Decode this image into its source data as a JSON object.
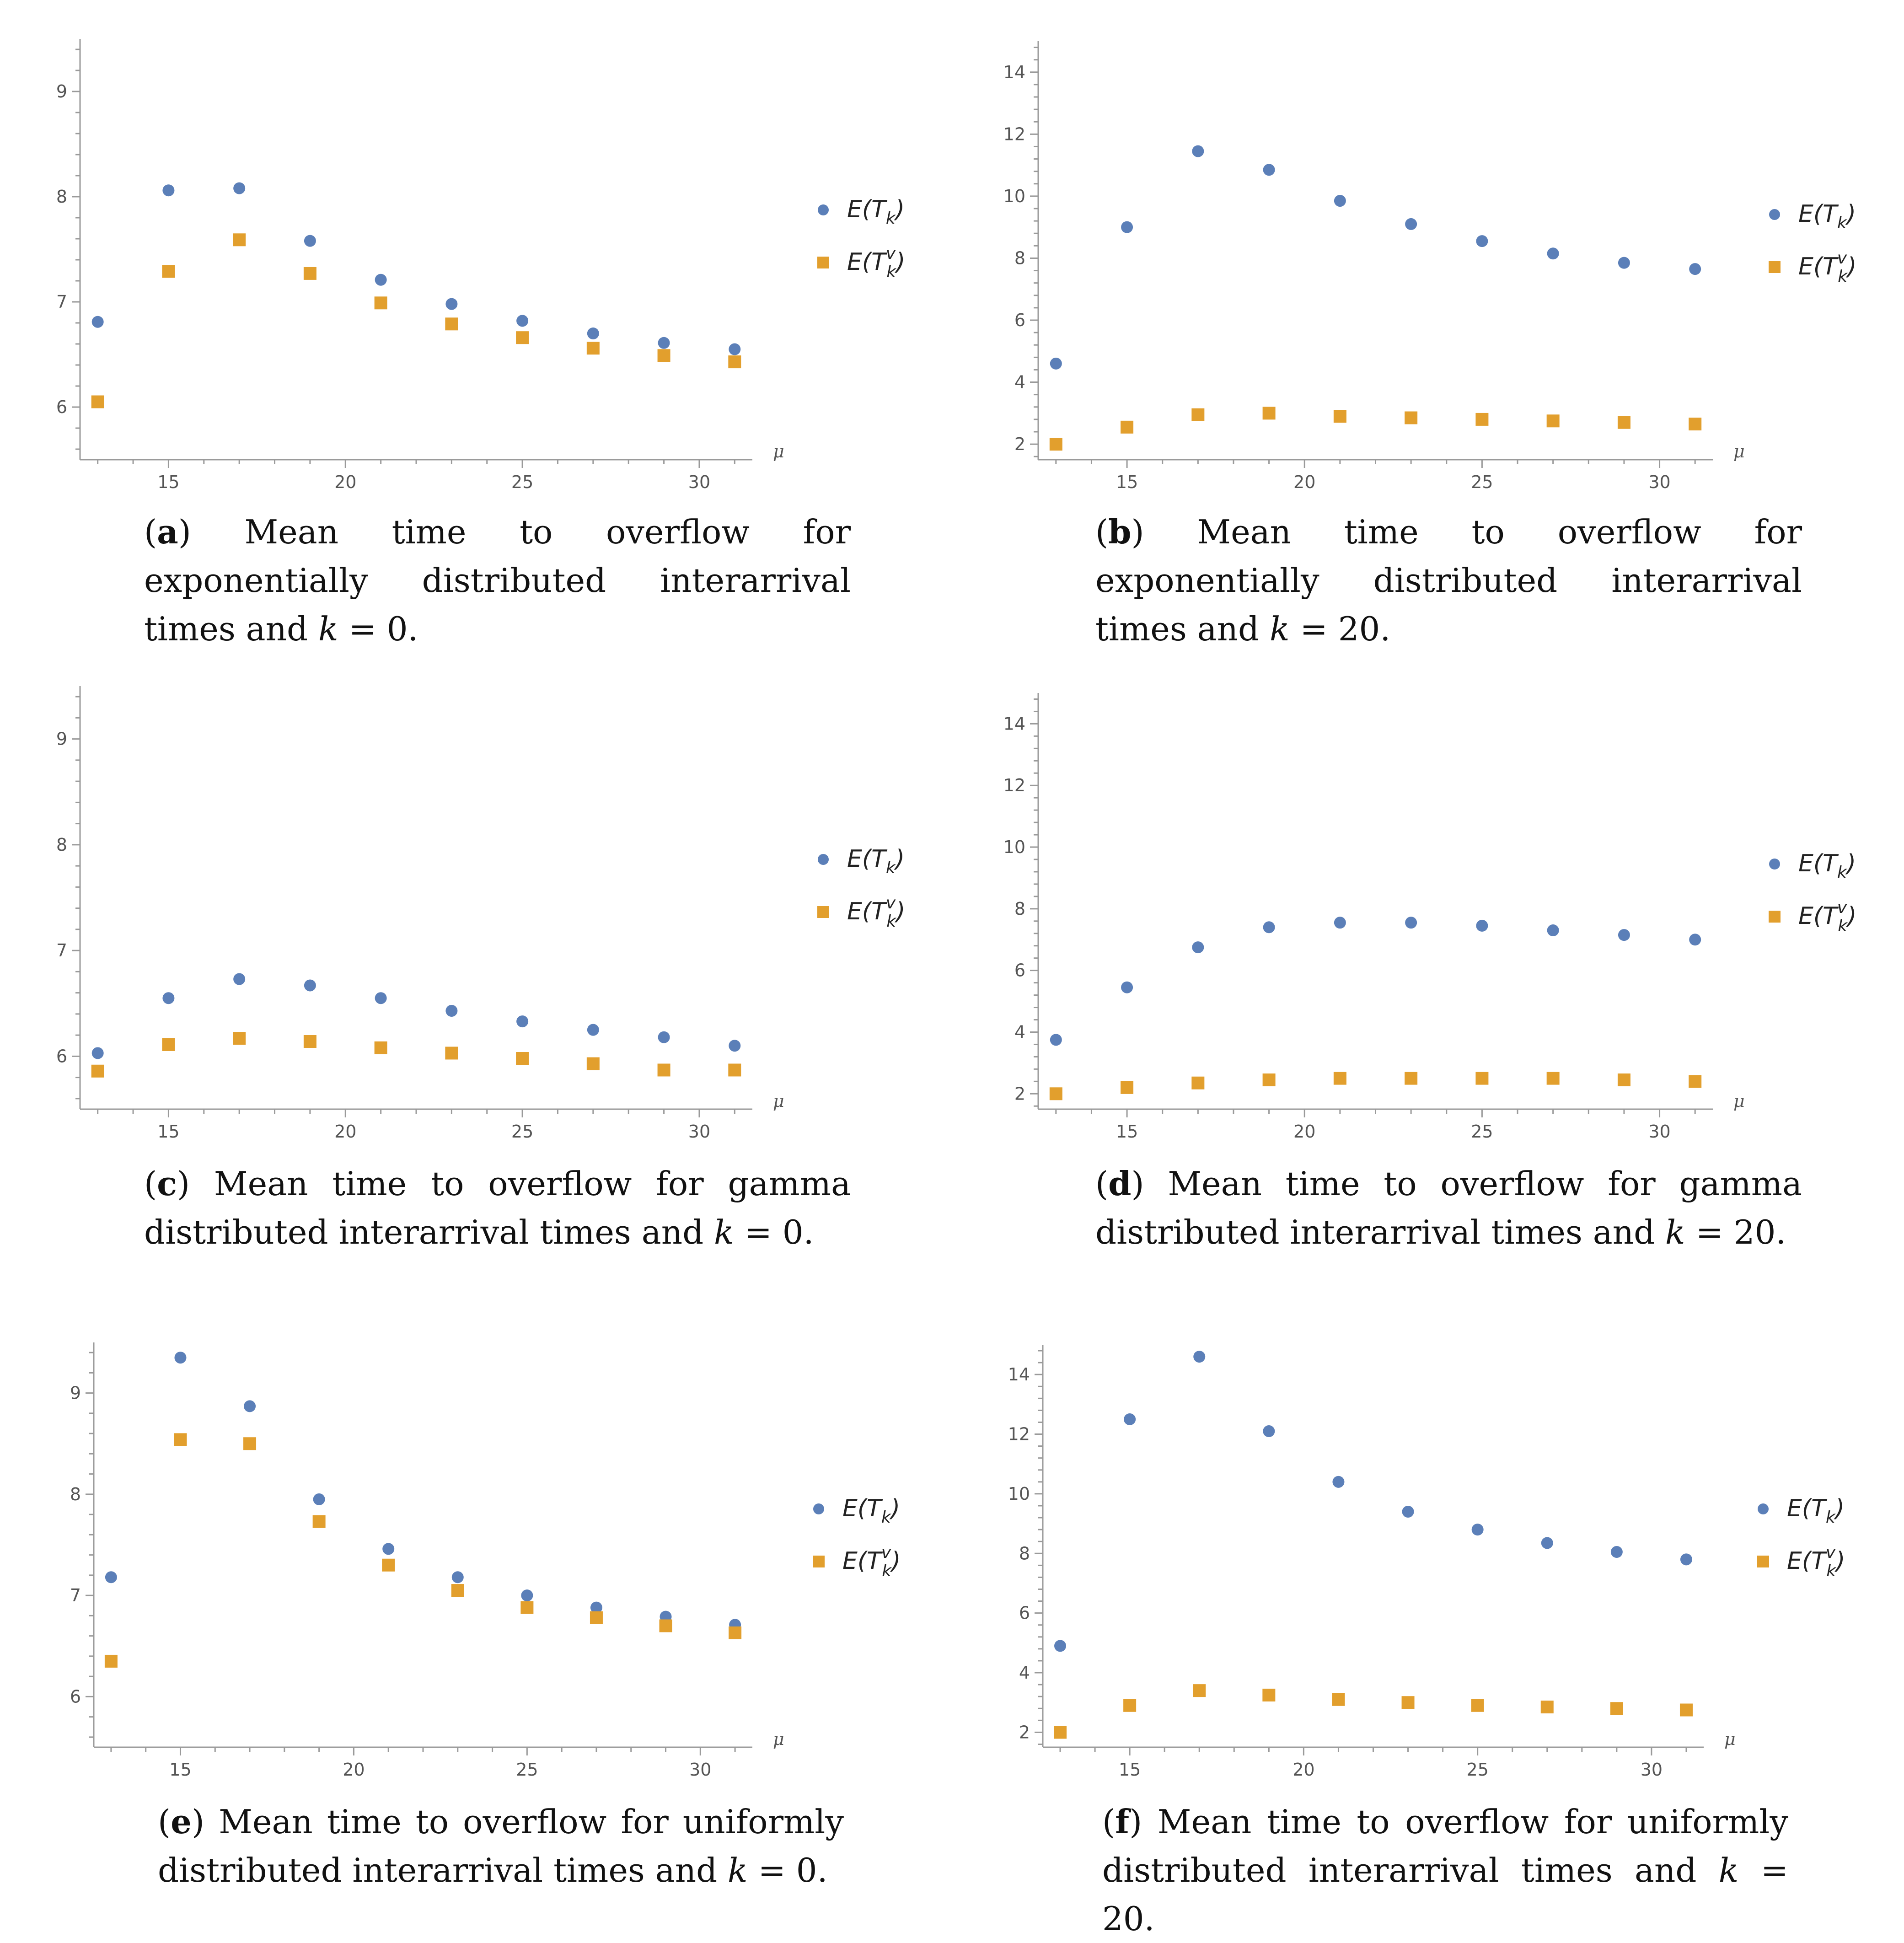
{
  "legend": {
    "series_a_prefix": "E(T",
    "series_a_sub": "k",
    "series_a_suffix": ")",
    "series_b_prefix": "E(T",
    "series_b_sub": "k",
    "series_b_sup": "v",
    "series_b_suffix": ")"
  },
  "colors": {
    "blue": "#5b7fb8",
    "orange": "#e29f2d",
    "axis": "#9a9a9a"
  },
  "panels": [
    {
      "id": "a",
      "letter": "a",
      "caption_text": "Mean time to overflow for exponentially distributed interarrival times and",
      "caption_var": "k",
      "caption_eq": "= 0."
    },
    {
      "id": "b",
      "letter": "b",
      "caption_text": "Mean time to overflow for exponentially distributed interarrival times and",
      "caption_var": "k",
      "caption_eq": "= 20."
    },
    {
      "id": "c",
      "letter": "c",
      "caption_text": "Mean time to overflow for gamma distributed interarrival times and",
      "caption_var": "k",
      "caption_eq": "= 0."
    },
    {
      "id": "d",
      "letter": "d",
      "caption_text": "Mean time to overflow for gamma distributed interarrival times and",
      "caption_var": "k",
      "caption_eq": "= 20."
    },
    {
      "id": "e",
      "letter": "e",
      "caption_text": "Mean time to overflow for uniformly distributed interarrival times and",
      "caption_var": "k",
      "caption_eq": "= 0."
    },
    {
      "id": "f",
      "letter": "f",
      "caption_text": "Mean time to overflow for uniformly distributed interarrival times and",
      "caption_var": "k",
      "caption_eq": "= 20."
    }
  ],
  "chart_data": [
    {
      "type": "scatter",
      "panel": "a",
      "xlabel": "μ",
      "xlim": [
        12.5,
        31.5
      ],
      "ylim": [
        5.5,
        9.5
      ],
      "xticks": [
        15,
        20,
        25,
        30
      ],
      "yticks": [
        6,
        7,
        8,
        9
      ],
      "x": [
        13,
        15,
        17,
        19,
        21,
        23,
        25,
        27,
        29,
        31
      ],
      "series": [
        {
          "name": "E(T_k)",
          "marker": "circle",
          "values": [
            6.81,
            8.06,
            8.08,
            7.58,
            7.21,
            6.98,
            6.82,
            6.7,
            6.61,
            6.55
          ]
        },
        {
          "name": "E(T_k^v)",
          "marker": "square",
          "values": [
            6.05,
            7.29,
            7.59,
            7.27,
            6.99,
            6.79,
            6.66,
            6.56,
            6.49,
            6.43
          ]
        }
      ]
    },
    {
      "type": "scatter",
      "panel": "b",
      "xlabel": "μ",
      "xlim": [
        12.5,
        31.5
      ],
      "ylim": [
        1.5,
        15
      ],
      "xticks": [
        15,
        20,
        25,
        30
      ],
      "yticks": [
        2,
        4,
        6,
        8,
        10,
        12,
        14
      ],
      "x": [
        13,
        15,
        17,
        19,
        21,
        23,
        25,
        27,
        29,
        31
      ],
      "series": [
        {
          "name": "E(T_k)",
          "marker": "circle",
          "values": [
            4.6,
            9.0,
            11.45,
            10.85,
            9.85,
            9.1,
            8.55,
            8.15,
            7.85,
            7.65
          ]
        },
        {
          "name": "E(T_k^v)",
          "marker": "square",
          "values": [
            2.0,
            2.55,
            2.95,
            3.0,
            2.9,
            2.85,
            2.8,
            2.75,
            2.7,
            2.65
          ]
        }
      ]
    },
    {
      "type": "scatter",
      "panel": "c",
      "xlabel": "μ",
      "xlim": [
        12.5,
        31.5
      ],
      "ylim": [
        5.5,
        9.5
      ],
      "xticks": [
        15,
        20,
        25,
        30
      ],
      "yticks": [
        6,
        7,
        8,
        9
      ],
      "x": [
        13,
        15,
        17,
        19,
        21,
        23,
        25,
        27,
        29,
        31
      ],
      "series": [
        {
          "name": "E(T_k)",
          "marker": "circle",
          "values": [
            6.03,
            6.55,
            6.73,
            6.67,
            6.55,
            6.43,
            6.33,
            6.25,
            6.18,
            6.1
          ]
        },
        {
          "name": "E(T_k^v)",
          "marker": "square",
          "values": [
            5.86,
            6.11,
            6.17,
            6.14,
            6.08,
            6.03,
            5.98,
            5.93,
            5.87,
            5.87
          ]
        }
      ]
    },
    {
      "type": "scatter",
      "panel": "d",
      "xlabel": "μ",
      "xlim": [
        12.5,
        31.5
      ],
      "ylim": [
        1.5,
        15
      ],
      "xticks": [
        15,
        20,
        25,
        30
      ],
      "yticks": [
        2,
        4,
        6,
        8,
        10,
        12,
        14
      ],
      "x": [
        13,
        15,
        17,
        19,
        21,
        23,
        25,
        27,
        29,
        31
      ],
      "series": [
        {
          "name": "E(T_k)",
          "marker": "circle",
          "values": [
            3.75,
            5.45,
            6.75,
            7.4,
            7.55,
            7.55,
            7.45,
            7.3,
            7.15,
            7.0
          ]
        },
        {
          "name": "E(T_k^v)",
          "marker": "square",
          "values": [
            2.0,
            2.2,
            2.35,
            2.45,
            2.5,
            2.5,
            2.5,
            2.5,
            2.45,
            2.4
          ]
        }
      ]
    },
    {
      "type": "scatter",
      "panel": "e",
      "xlabel": "μ",
      "xlim": [
        12.5,
        31.5
      ],
      "ylim": [
        5.5,
        9.5
      ],
      "xticks": [
        15,
        20,
        25,
        30
      ],
      "yticks": [
        6,
        7,
        8,
        9
      ],
      "x": [
        13,
        15,
        17,
        19,
        21,
        23,
        25,
        27,
        29,
        31
      ],
      "series": [
        {
          "name": "E(T_k)",
          "marker": "circle",
          "values": [
            7.18,
            9.35,
            8.87,
            7.95,
            7.46,
            7.18,
            7.0,
            6.88,
            6.79,
            6.71
          ]
        },
        {
          "name": "E(T_k^v)",
          "marker": "square",
          "values": [
            6.35,
            8.54,
            8.5,
            7.73,
            7.3,
            7.05,
            6.88,
            6.78,
            6.7,
            6.63
          ]
        }
      ]
    },
    {
      "type": "scatter",
      "panel": "f",
      "xlabel": "μ",
      "xlim": [
        12.5,
        31.5
      ],
      "ylim": [
        1.5,
        15
      ],
      "xticks": [
        15,
        20,
        25,
        30
      ],
      "yticks": [
        2,
        4,
        6,
        8,
        10,
        12,
        14
      ],
      "x": [
        13,
        15,
        17,
        19,
        21,
        23,
        25,
        27,
        29,
        31
      ],
      "series": [
        {
          "name": "E(T_k)",
          "marker": "circle",
          "values": [
            4.9,
            12.5,
            14.6,
            12.1,
            10.4,
            9.4,
            8.8,
            8.35,
            8.05,
            7.8
          ]
        },
        {
          "name": "E(T_k^v)",
          "marker": "square",
          "values": [
            2.0,
            2.9,
            3.4,
            3.25,
            3.1,
            3.0,
            2.9,
            2.85,
            2.8,
            2.75
          ]
        }
      ]
    }
  ]
}
